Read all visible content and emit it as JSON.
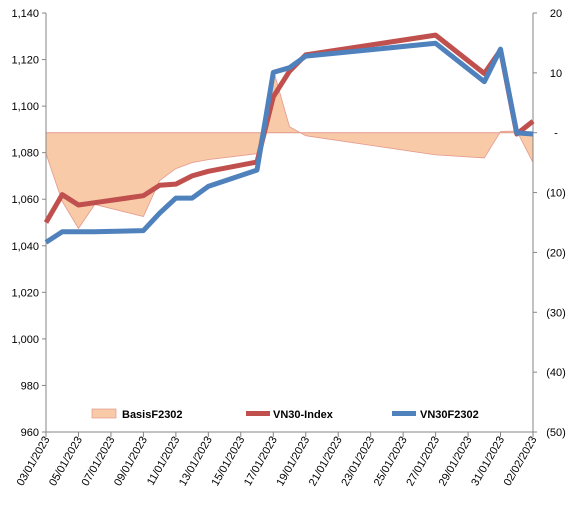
{
  "chart_data": {
    "type": "line",
    "title": "",
    "xlabel": "",
    "ylabel": "",
    "x_dates": [
      "2023-01-03",
      "2023-01-04",
      "2023-01-05",
      "2023-01-06",
      "2023-01-09",
      "2023-01-10",
      "2023-01-11",
      "2023-01-12",
      "2023-01-13",
      "2023-01-16",
      "2023-01-17",
      "2023-01-18",
      "2023-01-19",
      "2023-01-27",
      "2023-01-30",
      "2023-01-31",
      "2023-02-01",
      "2023-02-02"
    ],
    "x_ticks": [
      "03/01/2023",
      "05/01/2023",
      "07/01/2023",
      "09/01/2023",
      "11/01/2023",
      "13/01/2023",
      "15/01/2023",
      "17/01/2023",
      "19/01/2023",
      "21/01/2023",
      "23/01/2023",
      "25/01/2023",
      "27/01/2023",
      "29/01/2023",
      "31/01/2023",
      "02/02/2023"
    ],
    "x_range": [
      "2023-01-03",
      "2023-02-02"
    ],
    "y_left": {
      "range": [
        960,
        1140
      ],
      "ticks": [
        "960",
        "980",
        "1,000",
        "1,020",
        "1,040",
        "1,060",
        "1,080",
        "1,100",
        "1,120",
        "1,140"
      ]
    },
    "y_right": {
      "range": [
        -50,
        20
      ],
      "ticks": [
        "20",
        "10",
        "-",
        "(10)",
        "(20)",
        "(30)",
        "(40)",
        "(50)"
      ]
    },
    "grid": false,
    "legend_position": "bottom",
    "series": [
      {
        "name": "BasisF2302",
        "type": "area",
        "axis": "right",
        "color": "#f9caa7",
        "edge_color": "#e3998c",
        "values": [
          -3.5,
          -11.5,
          -16,
          -12,
          -14,
          -8,
          -6,
          -5,
          -4.5,
          -3.5,
          10.5,
          1,
          -0.5,
          -3.7,
          -4.2,
          0.2,
          0.3,
          -5
        ]
      },
      {
        "name": "VN30-Index",
        "type": "line",
        "axis": "left",
        "color": "#c0504d",
        "values": [
          1050,
          1062,
          1057.5,
          1058.5,
          1061.5,
          1066,
          1066.5,
          1070,
          1072,
          1076,
          1104,
          1115,
          1122,
          1130.5,
          1114,
          1124,
          1088,
          1093.5
        ]
      },
      {
        "name": "VN30F2302",
        "type": "line",
        "axis": "left",
        "color": "#4f81bd",
        "values": [
          1041.5,
          1046,
          1046,
          1046,
          1046.5,
          1054,
          1060.5,
          1060.5,
          1065.5,
          1072.5,
          1114.5,
          1116.5,
          1121.5,
          1127,
          1110.5,
          1124.5,
          1088.5,
          1088
        ]
      }
    ]
  }
}
